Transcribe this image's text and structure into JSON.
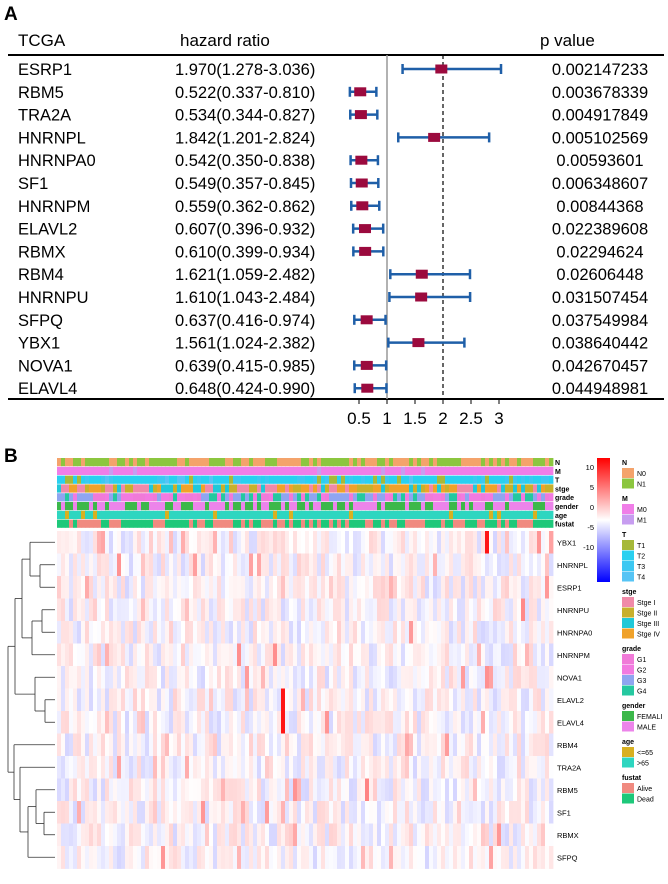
{
  "panel_a_label": "A",
  "panel_b_label": "B",
  "chart_data": [
    {
      "type": "forest",
      "headers": {
        "gene": "TCGA",
        "hr": "hazard ratio",
        "p": "p value"
      },
      "reference_line": 1,
      "dashed_line": 2,
      "xticks": [
        "0.5",
        "1",
        "1.5",
        "2",
        "2.5",
        "3"
      ],
      "xtick_values": [
        0.5,
        1,
        1.5,
        2,
        2.5,
        3
      ],
      "colors": {
        "point": "#9b0a3e",
        "ci": "#1f5fa8"
      },
      "rows": [
        {
          "gene": "ESRP1",
          "hr_text": "1.970(1.278-3.036)",
          "hr": 1.97,
          "lo": 1.278,
          "hi": 3.036,
          "p": "0.002147233"
        },
        {
          "gene": "RBM5",
          "hr_text": "0.522(0.337-0.810)",
          "hr": 0.522,
          "lo": 0.337,
          "hi": 0.81,
          "p": "0.003678339"
        },
        {
          "gene": "TRA2A",
          "hr_text": "0.534(0.344-0.827)",
          "hr": 0.534,
          "lo": 0.344,
          "hi": 0.827,
          "p": "0.004917849"
        },
        {
          "gene": "HNRNPL",
          "hr_text": "1.842(1.201-2.824)",
          "hr": 1.842,
          "lo": 1.201,
          "hi": 2.824,
          "p": "0.005102569"
        },
        {
          "gene": "HNRNPA0",
          "hr_text": "0.542(0.350-0.838)",
          "hr": 0.542,
          "lo": 0.35,
          "hi": 0.838,
          "p": "0.00593601"
        },
        {
          "gene": "SF1",
          "hr_text": "0.549(0.357-0.845)",
          "hr": 0.549,
          "lo": 0.357,
          "hi": 0.845,
          "p": "0.006348607"
        },
        {
          "gene": "HNRNPM",
          "hr_text": "0.559(0.362-0.862)",
          "hr": 0.559,
          "lo": 0.362,
          "hi": 0.862,
          "p": "0.00844368"
        },
        {
          "gene": "ELAVL2",
          "hr_text": "0.607(0.396-0.932)",
          "hr": 0.607,
          "lo": 0.396,
          "hi": 0.932,
          "p": "0.022389608"
        },
        {
          "gene": "RBMX",
          "hr_text": "0.610(0.399-0.934)",
          "hr": 0.61,
          "lo": 0.399,
          "hi": 0.934,
          "p": "0.02294624"
        },
        {
          "gene": "RBM4",
          "hr_text": "1.621(1.059-2.482)",
          "hr": 1.621,
          "lo": 1.059,
          "hi": 2.482,
          "p": "0.02606448"
        },
        {
          "gene": "HNRNPU",
          "hr_text": "1.610(1.043-2.484)",
          "hr": 1.61,
          "lo": 1.043,
          "hi": 2.484,
          "p": "0.031507454"
        },
        {
          "gene": "SFPQ",
          "hr_text": "0.637(0.416-0.974)",
          "hr": 0.637,
          "lo": 0.416,
          "hi": 0.974,
          "p": "0.037549984"
        },
        {
          "gene": "YBX1",
          "hr_text": "1.561(1.024-2.382)",
          "hr": 1.561,
          "lo": 1.024,
          "hi": 2.382,
          "p": "0.038640442"
        },
        {
          "gene": "NOVA1",
          "hr_text": "0.639(0.415-0.985)",
          "hr": 0.639,
          "lo": 0.415,
          "hi": 0.985,
          "p": "0.042670457"
        },
        {
          "gene": "ELAVL4",
          "hr_text": "0.648(0.424-0.990)",
          "hr": 0.648,
          "lo": 0.424,
          "hi": 0.99,
          "p": "0.044948981"
        }
      ]
    },
    {
      "type": "heatmap",
      "row_labels": [
        "YBX1",
        "HNRNPL",
        "ESRP1",
        "HNRNPU",
        "HNRNPA0",
        "HNRNPM",
        "NOVA1",
        "ELAVL2",
        "ELAVL4",
        "RBM4",
        "TRA2A",
        "RBM5",
        "SF1",
        "RBMX",
        "SFPQ"
      ],
      "annotation_tracks": [
        "N",
        "M",
        "T",
        "stge",
        "grade",
        "gender",
        "age",
        "fustat"
      ],
      "colorbar": {
        "ticks": [
          "10",
          "5",
          "0",
          "-5",
          "-10"
        ],
        "range": [
          -12,
          12
        ],
        "colors": [
          "#0000ff",
          "#ffffff",
          "#ff0000"
        ]
      },
      "legends": [
        {
          "title": "N",
          "items": [
            {
              "label": "N0",
              "color": "#f4a36b"
            },
            {
              "label": "N1",
              "color": "#8cc63f"
            }
          ]
        },
        {
          "title": "M",
          "items": [
            {
              "label": "M0",
              "color": "#f07ee8"
            },
            {
              "label": "M1",
              "color": "#c79df0"
            }
          ]
        },
        {
          "title": "T",
          "items": [
            {
              "label": "T1",
              "color": "#a6b93a"
            },
            {
              "label": "T2",
              "color": "#29d0f0"
            },
            {
              "label": "T3",
              "color": "#3cc8f2"
            },
            {
              "label": "T4",
              "color": "#56c4f5"
            }
          ]
        },
        {
          "title": "stge",
          "items": [
            {
              "label": "Stge I",
              "color": "#f08aa8"
            },
            {
              "label": "Stge II",
              "color": "#c8b02c"
            },
            {
              "label": "Stge III",
              "color": "#21c8d8"
            },
            {
              "label": "Stge IV",
              "color": "#f0a22a"
            }
          ]
        },
        {
          "title": "grade",
          "items": [
            {
              "label": "G1",
              "color": "#f07ad8"
            },
            {
              "label": "G2",
              "color": "#f27ae0"
            },
            {
              "label": "G3",
              "color": "#8fa5f0"
            },
            {
              "label": "G4",
              "color": "#25c8a0"
            }
          ]
        },
        {
          "title": "gender",
          "items": [
            {
              "label": "FEMALI",
              "color": "#3cb84a"
            },
            {
              "label": "MALE",
              "color": "#ec84ea"
            }
          ]
        },
        {
          "title": "age",
          "items": [
            {
              "label": "<=65",
              "color": "#d8b021"
            },
            {
              "label": ">65",
              "color": "#2ed6c0"
            }
          ]
        },
        {
          "title": "fustat",
          "items": [
            {
              "label": "Alive",
              "color": "#f08a80"
            },
            {
              "label": "Dead",
              "color": "#1ec87a"
            }
          ]
        }
      ]
    }
  ]
}
